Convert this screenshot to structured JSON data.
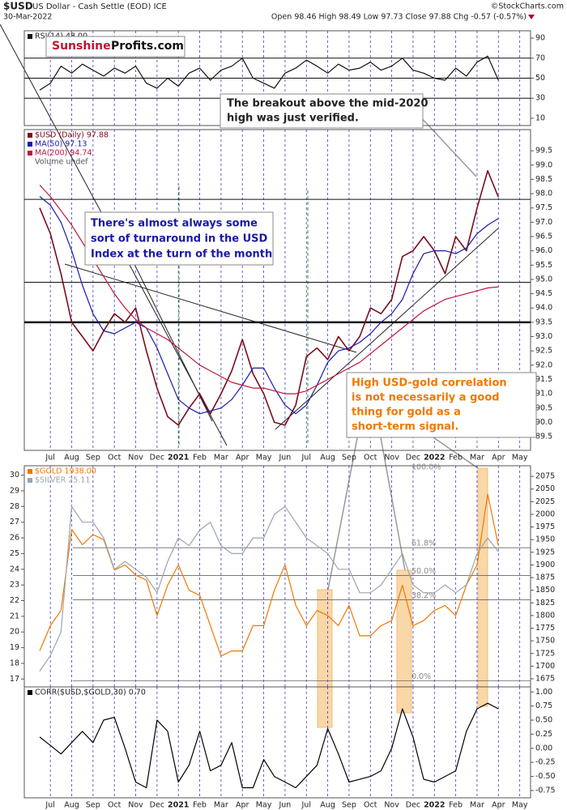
{
  "header": {
    "symbol": "$USD",
    "name": "US Dollar - Cash Settle (EOD) ICE",
    "date": "30-Mar-2022",
    "credit": "©StockCharts.com",
    "quote": "Open 98.46 High 98.49 Low 97.73 Close 97.88 Chg -0.57 (-0.57%)",
    "logo": [
      "Sunshine",
      "Profits.com"
    ]
  },
  "chart_data": [
    {
      "type": "line",
      "ylim": [
        2.7,
        97.3
      ],
      "yticks": [
        10,
        30,
        50,
        70,
        90
      ],
      "hlines": [
        70,
        50,
        30
      ],
      "series": [
        {
          "name": "RSI(14) 48.00",
          "color": "#111111",
          "values": [
            38,
            45,
            62,
            55,
            64,
            58,
            52,
            60,
            55,
            62,
            45,
            40,
            50,
            42,
            55,
            60,
            48,
            58,
            62,
            70,
            50,
            45,
            40,
            55,
            60,
            68,
            62,
            55,
            64,
            58,
            60,
            66,
            58,
            62,
            70,
            58,
            55,
            50,
            48,
            60,
            52,
            66,
            72,
            48,
            null,
            null
          ]
        }
      ]
    },
    {
      "type": "line",
      "ylim": [
        89.02,
        100.24
      ],
      "yticks": [
        89.5,
        {
          "value": 90,
          "label": "90.0"
        },
        90.5,
        {
          "value": 91,
          "label": "91.0"
        },
        91.5,
        {
          "value": 92,
          "label": "92.0"
        },
        92.5,
        {
          "value": 93,
          "label": "93.0"
        },
        93.5,
        {
          "value": 94,
          "label": "94.0"
        },
        94.5,
        {
          "value": 95,
          "label": "95.0"
        },
        95.5,
        {
          "value": 96,
          "label": "96.0"
        },
        96.5,
        {
          "value": 97,
          "label": "97.0"
        },
        97.5,
        {
          "value": 98,
          "label": "98.0"
        },
        98.5,
        {
          "value": 99,
          "label": "99.0"
        },
        99.5
      ],
      "hlines": [
        97.8,
        94.9,
        93.5
      ],
      "categories": [
        null,
        "Jul",
        null,
        "Aug",
        null,
        "Sep",
        null,
        "Oct",
        null,
        "Nov",
        null,
        "Dec",
        null,
        "2021",
        null,
        "Feb",
        null,
        "Mar",
        null,
        "Apr",
        null,
        "May",
        null,
        "Jun",
        null,
        "Jul",
        null,
        "Aug",
        null,
        "Sep",
        null,
        "Oct",
        null,
        "Nov",
        null,
        "Dec",
        null,
        "2022",
        null,
        "Feb",
        null,
        "Mar",
        null,
        "Apr",
        null,
        "May"
      ],
      "series": [
        {
          "name": "$USD (Daily) 97.88",
          "color": "#7a0d1e",
          "values": [
            97.5,
            96.6,
            95.2,
            93.5,
            93.0,
            92.5,
            93.2,
            93.8,
            93.5,
            94.0,
            92.5,
            91.2,
            90.2,
            89.9,
            90.5,
            91.0,
            90.3,
            91.0,
            91.8,
            92.9,
            91.7,
            91.0,
            90.0,
            89.9,
            90.6,
            92.3,
            92.6,
            92.2,
            93.0,
            92.5,
            93.0,
            94.0,
            93.8,
            94.3,
            95.8,
            96.0,
            96.5,
            96.0,
            95.2,
            96.5,
            96.0,
            97.5,
            98.8,
            97.88,
            null,
            null
          ]
        },
        {
          "name": "MA(50) 97.13",
          "color": "#1a1aa8",
          "values": [
            97.9,
            97.6,
            97.0,
            96.0,
            94.8,
            93.8,
            93.2,
            93.1,
            93.3,
            93.5,
            93.3,
            92.6,
            91.7,
            90.8,
            90.5,
            90.3,
            90.4,
            90.5,
            90.8,
            91.3,
            91.9,
            91.9,
            91.2,
            90.6,
            90.3,
            90.6,
            91.3,
            92.1,
            92.5,
            92.6,
            92.8,
            93.1,
            93.5,
            93.8,
            94.3,
            95.2,
            95.9,
            96.0,
            96.0,
            95.9,
            96.1,
            96.6,
            96.9,
            97.13,
            null,
            null
          ]
        },
        {
          "name": "MA(200) 94.74",
          "color": "#c0143c",
          "values": [
            98.3,
            97.9,
            97.4,
            96.9,
            96.3,
            95.7,
            95.1,
            94.5,
            94.0,
            93.6,
            93.3,
            93.1,
            92.9,
            92.6,
            92.3,
            92.0,
            91.8,
            91.6,
            91.4,
            91.3,
            91.2,
            91.2,
            91.1,
            91.0,
            91.0,
            91.1,
            91.3,
            91.5,
            91.7,
            91.9,
            92.1,
            92.4,
            92.7,
            93.0,
            93.3,
            93.6,
            93.9,
            94.1,
            94.3,
            94.4,
            94.5,
            94.6,
            94.7,
            94.74,
            null,
            null
          ]
        }
      ],
      "volume_label": "Volume undef",
      "annotations": [
        [
          "The breakout above the mid-2020",
          "high was just verified."
        ],
        [
          "There's almost always some",
          "sort of turnaround in the USD",
          "Index at the turn of the month"
        ],
        [
          "High USD-gold correlation",
          "is not necessarily a good",
          "thing for gold as a",
          "short-term signal."
        ]
      ]
    },
    {
      "type": "line",
      "ylim": [
        16.5,
        30.6
      ],
      "yticks": [
        17,
        18,
        19,
        20,
        21,
        22,
        23,
        24,
        25,
        26,
        27,
        28,
        29,
        30
      ],
      "y2lim": [
        1659,
        2096
      ],
      "y2ticks": [
        1675,
        1700,
        1725,
        1750,
        1775,
        1800,
        1825,
        1850,
        1875,
        1900,
        1925,
        1950,
        1975,
        2000,
        2025,
        2050,
        2075
      ],
      "levels": [
        {
          "label": "100.0%",
          "level": 2096
        },
        {
          "label": "61.8%",
          "level": 1934
        },
        {
          "label": "50.0%",
          "level": 1879
        },
        {
          "label": "38.2%",
          "level": 1831
        },
        {
          "label": "0.0%",
          "level": 1671
        }
      ],
      "series": [
        {
          "name": "$GOLD 1938.00",
          "color": "#f07800",
          "axis": "y2",
          "values": [
            1730,
            1780,
            1810,
            1970,
            1940,
            1960,
            1950,
            1890,
            1900,
            1880,
            1870,
            1800,
            1860,
            1900,
            1850,
            1840,
            1780,
            1720,
            1730,
            1730,
            1780,
            1780,
            1850,
            1900,
            1820,
            1780,
            1810,
            1800,
            1780,
            1820,
            1760,
            1760,
            1780,
            1790,
            1860,
            1780,
            1790,
            1810,
            1820,
            1800,
            1860,
            1900,
            2040,
            1938,
            null,
            null
          ]
        },
        {
          "name": "$SILVER 25.11",
          "color": "#9aa5ad",
          "values": [
            17.5,
            18.5,
            20,
            28,
            27,
            27,
            26,
            24,
            24.5,
            24,
            23.5,
            22.5,
            24.5,
            26,
            25.5,
            26.5,
            27,
            25.5,
            25,
            25,
            26,
            26,
            27.5,
            28,
            27,
            26,
            25.5,
            25,
            24,
            24,
            22.5,
            22.5,
            23,
            24,
            25,
            23,
            22.5,
            22.5,
            23,
            22.5,
            23,
            25,
            26,
            25.11,
            null,
            null
          ]
        }
      ]
    },
    {
      "type": "line",
      "ylim": [
        -0.88,
        1.09
      ],
      "yticks": [
        {
          "value": 1,
          "label": "1.00"
        },
        {
          "value": 0.75,
          "label": "0.75"
        },
        {
          "value": 0.5,
          "label": "0.50"
        },
        {
          "value": 0.25,
          "label": "0.25"
        },
        {
          "value": 0,
          "label": "0.00"
        },
        {
          "value": -0.25,
          "label": "-0.25"
        },
        {
          "value": -0.5,
          "label": "-0.50"
        },
        {
          "value": -0.75,
          "label": "-0.75"
        }
      ],
      "categories": [
        null,
        "Jul",
        null,
        "Aug",
        null,
        "Sep",
        null,
        "Oct",
        null,
        "Nov",
        null,
        "Dec",
        null,
        "2021",
        null,
        "Feb",
        null,
        "Mar",
        null,
        "Apr",
        null,
        "May",
        null,
        "Jun",
        null,
        "Jul",
        null,
        "Aug",
        null,
        "Sep",
        null,
        "Oct",
        null,
        "Nov",
        null,
        "Dec",
        null,
        "2022",
        null,
        "Feb",
        null,
        "Mar",
        null,
        "Apr",
        null,
        "May"
      ],
      "series": [
        {
          "name": "CORR($USD,$GOLD,30) 0.70",
          "color": "#000000",
          "values": [
            0.2,
            0.05,
            -0.1,
            0.1,
            0.3,
            0.1,
            0.5,
            0.55,
            0.0,
            -0.6,
            -0.7,
            0.5,
            0.3,
            -0.6,
            -0.3,
            0.3,
            -0.4,
            -0.3,
            0.1,
            -0.7,
            -0.7,
            -0.2,
            -0.5,
            -0.6,
            -0.7,
            -0.5,
            -0.3,
            0.35,
            -0.1,
            -0.6,
            -0.55,
            -0.5,
            -0.4,
            0.0,
            0.7,
            0.2,
            -0.55,
            -0.6,
            -0.5,
            -0.4,
            0.3,
            0.7,
            0.8,
            0.7,
            null,
            null
          ]
        }
      ]
    }
  ]
}
